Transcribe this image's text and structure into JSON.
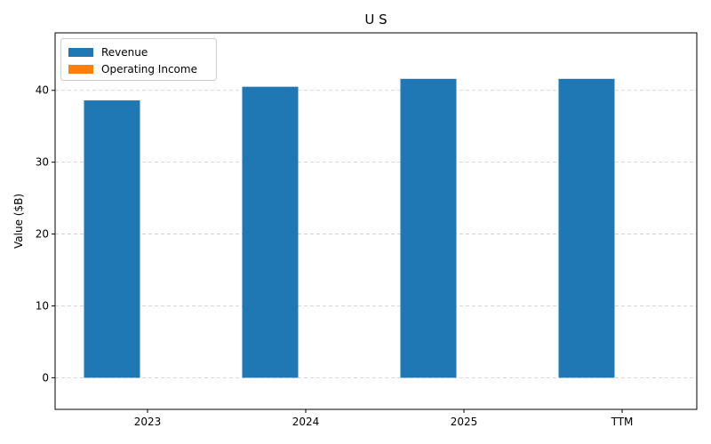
{
  "chart_data": {
    "type": "bar",
    "title": "U S",
    "xlabel": "",
    "ylabel": "Value ($B)",
    "categories": [
      "2023",
      "2024",
      "2025",
      "TTM"
    ],
    "series": [
      {
        "name": "Revenue",
        "color": "#1f77b4",
        "values": [
          38.6,
          40.5,
          41.6,
          41.6
        ]
      },
      {
        "name": "Operating Income",
        "color": "#ff7f0e",
        "values": [
          0,
          0,
          0,
          0
        ]
      }
    ],
    "ylim": [
      -4.4,
      48
    ],
    "yticks": [
      0,
      10,
      20,
      30,
      40
    ],
    "grid": "horizontal-dashed",
    "legend": "top-left"
  }
}
